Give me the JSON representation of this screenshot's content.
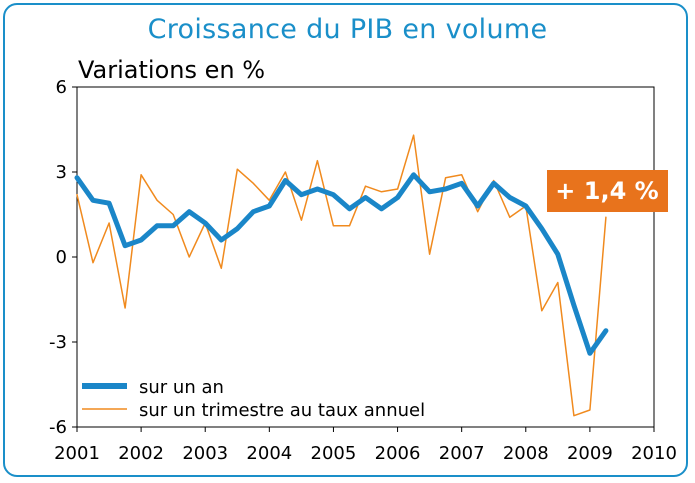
{
  "chart_data": {
    "type": "line",
    "title": "Croissance du PIB en volume",
    "ylabel": "Variations en %",
    "xlim": [
      2001,
      2010
    ],
    "ylim": [
      -6,
      6
    ],
    "yticks": [
      6,
      3,
      0,
      -3,
      -6
    ],
    "ytick_labels": [
      "6",
      "3",
      "0",
      "-3",
      "-6"
    ],
    "xticks": [
      2001,
      2002,
      2003,
      2004,
      2005,
      2006,
      2007,
      2008,
      2009,
      2010
    ],
    "xtick_labels": [
      "2001",
      "2002",
      "2003",
      "2004",
      "2005",
      "2006",
      "2007",
      "2008",
      "2009",
      "2010"
    ],
    "grid": true,
    "legend_position": "bottom-left",
    "annotation": "+ 1,4 %",
    "annotation_color": "#e8731c",
    "series": [
      {
        "name": "sur un an",
        "color": "#1a86c8",
        "x": [
          2001.0,
          2001.25,
          2001.5,
          2001.75,
          2002.0,
          2002.25,
          2002.5,
          2002.75,
          2003.0,
          2003.25,
          2003.5,
          2003.75,
          2004.0,
          2004.25,
          2004.5,
          2004.75,
          2005.0,
          2005.25,
          2005.5,
          2005.75,
          2006.0,
          2006.25,
          2006.5,
          2006.75,
          2007.0,
          2007.25,
          2007.5,
          2007.75,
          2008.0,
          2008.25,
          2008.5,
          2008.75,
          2009.0,
          2009.25
        ],
        "values": [
          2.8,
          2.0,
          1.9,
          0.4,
          0.6,
          1.1,
          1.1,
          1.6,
          1.2,
          0.6,
          1.0,
          1.6,
          1.8,
          2.7,
          2.2,
          2.4,
          2.2,
          1.7,
          2.1,
          1.7,
          2.1,
          2.9,
          2.3,
          2.4,
          2.6,
          1.8,
          2.6,
          2.1,
          1.8,
          1.0,
          0.1,
          -1.7,
          -3.4,
          -2.6
        ]
      },
      {
        "name": "sur un trimestre au taux annuel",
        "color": "#f08a1e",
        "x": [
          2001.0,
          2001.25,
          2001.5,
          2001.75,
          2002.0,
          2002.25,
          2002.5,
          2002.75,
          2003.0,
          2003.25,
          2003.5,
          2003.75,
          2004.0,
          2004.25,
          2004.5,
          2004.75,
          2005.0,
          2005.25,
          2005.5,
          2005.75,
          2006.0,
          2006.25,
          2006.5,
          2006.75,
          2007.0,
          2007.25,
          2007.5,
          2007.75,
          2008.0,
          2008.25,
          2008.5,
          2008.75,
          2009.0,
          2009.25
        ],
        "values": [
          2.2,
          -0.2,
          1.2,
          -1.8,
          2.9,
          2.0,
          1.5,
          0.0,
          1.2,
          -0.4,
          3.1,
          2.6,
          2.0,
          3.0,
          1.3,
          3.4,
          1.1,
          1.1,
          2.5,
          2.3,
          2.4,
          4.3,
          0.1,
          2.8,
          2.9,
          1.6,
          2.7,
          1.4,
          1.8,
          -1.9,
          -0.9,
          -5.6,
          -5.4,
          1.4
        ]
      }
    ]
  }
}
